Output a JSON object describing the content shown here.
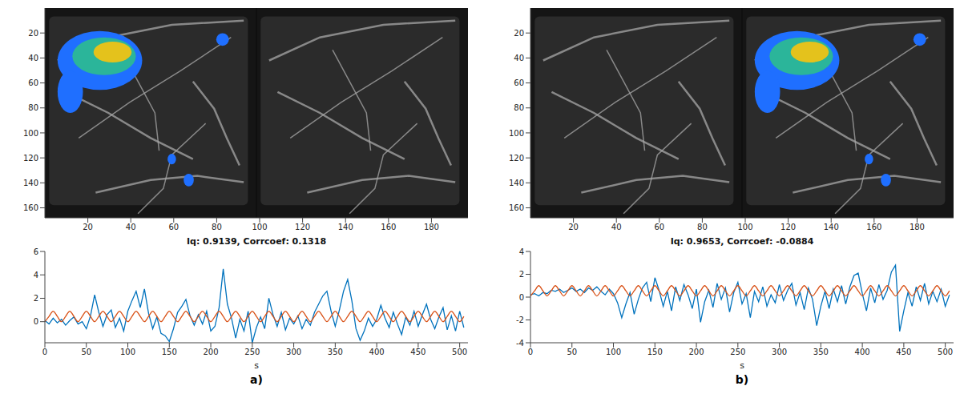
{
  "chart_data": [
    {
      "type": "image",
      "xlim": [
        0,
        197
      ],
      "ylim": [
        0,
        168
      ],
      "xticks": [
        20,
        40,
        60,
        80,
        100,
        120,
        140,
        160,
        180
      ],
      "yticks": [
        20,
        40,
        60,
        80,
        100,
        120,
        140,
        160
      ]
    },
    {
      "type": "line",
      "title": "Iq: 0.9139, Corrcoef: 0.1318",
      "xlabel": "s",
      "xlim": [
        0,
        510
      ],
      "xticks": [
        0,
        50,
        100,
        150,
        200,
        250,
        300,
        350,
        400,
        450,
        500
      ],
      "ylim": [
        -1.8,
        6
      ],
      "yticks": [
        0,
        2,
        4,
        6
      ],
      "grid": false,
      "x": [
        0,
        5,
        10,
        15,
        20,
        25,
        30,
        35,
        40,
        45,
        50,
        55,
        60,
        65,
        70,
        75,
        80,
        85,
        90,
        95,
        100,
        105,
        110,
        115,
        120,
        125,
        130,
        135,
        140,
        145,
        150,
        155,
        160,
        165,
        170,
        175,
        180,
        185,
        190,
        195,
        200,
        205,
        210,
        215,
        220,
        225,
        230,
        235,
        240,
        245,
        250,
        255,
        260,
        265,
        270,
        275,
        280,
        285,
        290,
        295,
        300,
        305,
        310,
        315,
        320,
        325,
        330,
        335,
        340,
        345,
        350,
        355,
        360,
        365,
        370,
        375,
        380,
        385,
        390,
        395,
        400,
        405,
        410,
        415,
        420,
        425,
        430,
        435,
        440,
        445,
        450,
        455,
        460,
        465,
        470,
        475,
        480,
        485,
        490,
        495,
        500,
        505
      ],
      "series": [
        {
          "color": "#0072bd",
          "values": [
            0.1,
            -0.2,
            0.3,
            -0.1,
            0.2,
            -0.3,
            0.1,
            0.4,
            -0.2,
            0.0,
            -0.6,
            0.5,
            2.3,
            0.8,
            -0.4,
            0.6,
            1.0,
            -0.5,
            0.3,
            -0.8,
            0.9,
            1.8,
            2.6,
            1.2,
            2.8,
            0.7,
            -0.6,
            0.4,
            -1.0,
            -1.2,
            -1.7,
            -0.6,
            0.8,
            1.3,
            1.9,
            0.5,
            -0.3,
            0.6,
            -0.2,
            0.9,
            -0.8,
            -0.4,
            1.2,
            4.5,
            1.5,
            0.3,
            -1.4,
            0.2,
            -0.8,
            0.9,
            -1.8,
            -0.5,
            0.4,
            -0.6,
            2.0,
            0.6,
            -0.4,
            0.8,
            -0.7,
            0.3,
            -0.2,
            0.5,
            -0.6,
            0.2,
            -0.3,
            0.8,
            1.5,
            2.2,
            2.6,
            0.9,
            -0.4,
            1.0,
            2.6,
            3.6,
            1.8,
            -0.6,
            -1.6,
            -0.8,
            0.3,
            -0.4,
            0.2,
            1.4,
            0.3,
            -0.5,
            0.8,
            -0.2,
            -1.1,
            0.4,
            -0.3,
            0.9,
            -0.4,
            0.6,
            1.5,
            0.2,
            -0.6,
            0.4,
            1.2,
            -0.7,
            0.5,
            -0.8,
            0.9,
            -0.5
          ]
        },
        {
          "color": "#d95319",
          "values": [
            0,
            0.45,
            0.9,
            0.45,
            0,
            0.45,
            0.9,
            0.45,
            0,
            0.45,
            0.9,
            0.45,
            0,
            0.45,
            0.9,
            0.45,
            0,
            0.45,
            0.9,
            0.45,
            0,
            0.45,
            0.9,
            0.45,
            0,
            0.45,
            0.9,
            0.45,
            0,
            0.45,
            0.9,
            0.45,
            0,
            0.45,
            0.9,
            0.45,
            0,
            0.45,
            0.9,
            0.45,
            0,
            0.45,
            0.9,
            0.45,
            0,
            0.45,
            0.9,
            0.45,
            0,
            0.45,
            0.9,
            0.45,
            0,
            0.45,
            0.9,
            0.45,
            0,
            0.45,
            0.9,
            0.45,
            0,
            0.45,
            0.9,
            0.45,
            0,
            0.45,
            0.9,
            0.45,
            0,
            0.45,
            0.9,
            0.45,
            0,
            0.45,
            0.9,
            0.45,
            0,
            0.45,
            0.9,
            0.45,
            0,
            0.45,
            0.9,
            0.45,
            0,
            0.45,
            0.9,
            0.45,
            0,
            0.45,
            0.9,
            0.45,
            0,
            0.45,
            0.9,
            0.45,
            0,
            0.45,
            0.9,
            0.45,
            0,
            0.45
          ]
        }
      ]
    },
    {
      "type": "image",
      "xlim": [
        0,
        197
      ],
      "ylim": [
        0,
        168
      ],
      "xticks": [
        20,
        40,
        60,
        80,
        100,
        120,
        140,
        160,
        180
      ],
      "yticks": [
        20,
        40,
        60,
        80,
        100,
        120,
        140,
        160
      ]
    },
    {
      "type": "line",
      "title": "Iq: 0.9653, Corrcoef: -0.0884",
      "xlabel": "s",
      "xlim": [
        0,
        510
      ],
      "xticks": [
        0,
        50,
        100,
        150,
        200,
        250,
        300,
        350,
        400,
        450,
        500
      ],
      "ylim": [
        -4,
        4
      ],
      "yticks": [
        -4,
        -2,
        0,
        2,
        4
      ],
      "grid": false,
      "x": [
        0,
        5,
        10,
        15,
        20,
        25,
        30,
        35,
        40,
        45,
        50,
        55,
        60,
        65,
        70,
        75,
        80,
        85,
        90,
        95,
        100,
        105,
        110,
        115,
        120,
        125,
        130,
        135,
        140,
        145,
        150,
        155,
        160,
        165,
        170,
        175,
        180,
        185,
        190,
        195,
        200,
        205,
        210,
        215,
        220,
        225,
        230,
        235,
        240,
        245,
        250,
        255,
        260,
        265,
        270,
        275,
        280,
        285,
        290,
        295,
        300,
        305,
        310,
        315,
        320,
        325,
        330,
        335,
        340,
        345,
        350,
        355,
        360,
        365,
        370,
        375,
        380,
        385,
        390,
        395,
        400,
        405,
        410,
        415,
        420,
        425,
        430,
        435,
        440,
        445,
        450,
        455,
        460,
        465,
        470,
        475,
        480,
        485,
        490,
        495,
        500,
        505
      ],
      "series": [
        {
          "color": "#0072bd",
          "values": [
            0.2,
            0.3,
            0.1,
            0.4,
            0.3,
            0.6,
            0.5,
            0.7,
            0.4,
            0.6,
            0.8,
            0.5,
            0.7,
            0.4,
            0.8,
            0.6,
            0.9,
            0.5,
            0.2,
            0.7,
            0.3,
            -0.5,
            -1.8,
            -0.6,
            0.4,
            -1.5,
            -0.2,
            0.8,
            1.3,
            -0.4,
            1.7,
            0.6,
            -0.8,
            0.5,
            -1.2,
            0.9,
            -0.3,
            1.1,
            0.2,
            -1.0,
            0.7,
            -2.2,
            -0.4,
            0.6,
            -0.9,
            1.2,
            -0.2,
            0.8,
            -1.3,
            0.4,
            1.3,
            -0.6,
            0.3,
            -1.8,
            0.5,
            -0.4,
            0.9,
            -0.8,
            0.2,
            -0.5,
            1.1,
            -0.3,
            0.6,
            1.2,
            -0.7,
            0.4,
            -1.1,
            0.8,
            -0.2,
            -2.5,
            -0.8,
            0.5,
            -1.0,
            0.7,
            -0.4,
            1.0,
            -0.6,
            0.9,
            1.9,
            2.1,
            0.3,
            -1.2,
            0.8,
            -0.5,
            1.1,
            -0.2,
            0.6,
            2.2,
            2.8,
            -3.0,
            -1.2,
            0.4,
            -0.8,
            0.9,
            -0.3,
            1.2,
            -0.6,
            0.5,
            -0.4,
            0.7,
            -0.8,
            0.2
          ]
        },
        {
          "color": "#d95319",
          "values": [
            0.1,
            0.55,
            1.0,
            0.55,
            0.1,
            0.55,
            1.0,
            0.55,
            0.1,
            0.55,
            1.0,
            0.55,
            0.1,
            0.55,
            1.0,
            0.55,
            0.1,
            0.55,
            1.0,
            0.55,
            0.1,
            0.55,
            1.0,
            0.55,
            0.1,
            0.55,
            1.0,
            0.55,
            0.1,
            0.55,
            1.0,
            0.55,
            0.1,
            0.55,
            1.0,
            0.55,
            0.1,
            0.55,
            1.0,
            0.55,
            0.1,
            0.55,
            1.0,
            0.55,
            0.1,
            0.55,
            1.0,
            0.55,
            0.1,
            0.55,
            1.0,
            0.55,
            0.1,
            0.55,
            1.0,
            0.55,
            0.1,
            0.55,
            1.0,
            0.55,
            0.1,
            0.55,
            1.0,
            0.55,
            0.1,
            0.55,
            1.0,
            0.55,
            0.1,
            0.55,
            1.0,
            0.55,
            0.1,
            0.55,
            1.0,
            0.55,
            0.1,
            0.55,
            1.0,
            0.55,
            0.1,
            0.55,
            1.0,
            0.55,
            0.1,
            0.55,
            1.0,
            0.55,
            0.1,
            0.55,
            1.0,
            0.55,
            0.1,
            0.55,
            1.0,
            0.55,
            0.1,
            0.55,
            1.0,
            0.55,
            0.1,
            0.55
          ]
        }
      ]
    }
  ],
  "panel_labels": [
    "a)",
    "b)"
  ]
}
